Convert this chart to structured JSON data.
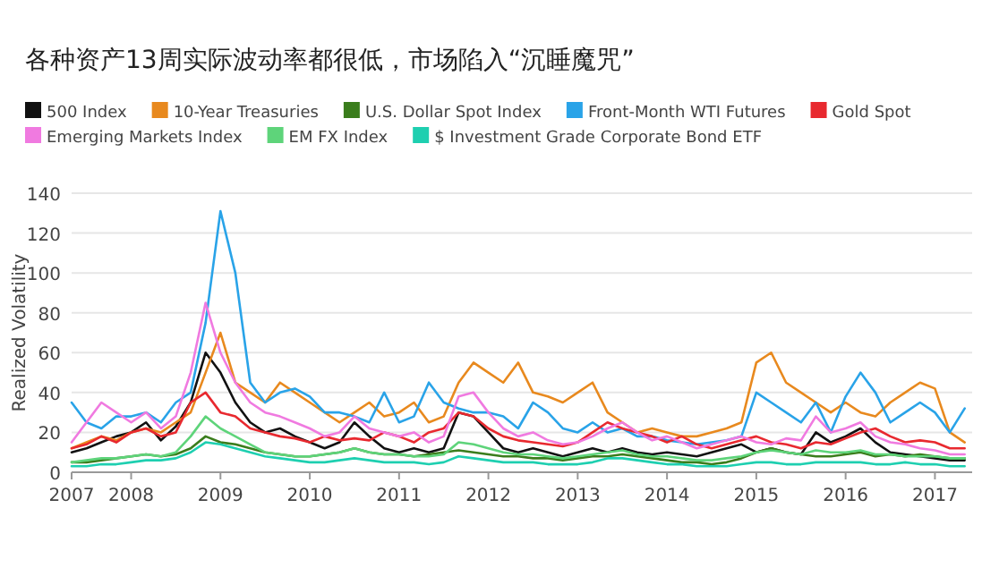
{
  "chart_data": {
    "type": "line",
    "title": "各种资产13周实际波动率都很低，市场陷入“沉睡魔咒”",
    "ylabel": "Realized Volatility",
    "x": [
      "2007-05",
      "2007-07",
      "2007-09",
      "2007-11",
      "2008-01",
      "2008-03",
      "2008-05",
      "2008-07",
      "2008-09",
      "2008-11",
      "2009-01",
      "2009-03",
      "2009-05",
      "2009-07",
      "2009-09",
      "2009-11",
      "2010-01",
      "2010-03",
      "2010-05",
      "2010-07",
      "2010-09",
      "2010-11",
      "2011-01",
      "2011-03",
      "2011-05",
      "2011-07",
      "2011-09",
      "2011-11",
      "2012-01",
      "2012-03",
      "2012-05",
      "2012-07",
      "2012-09",
      "2012-11",
      "2013-01",
      "2013-03",
      "2013-05",
      "2013-07",
      "2013-09",
      "2013-11",
      "2014-01",
      "2014-03",
      "2014-05",
      "2014-07",
      "2014-09",
      "2014-11",
      "2015-01",
      "2015-03",
      "2015-05",
      "2015-07",
      "2015-09",
      "2015-11",
      "2016-01",
      "2016-03",
      "2016-05",
      "2016-07",
      "2016-09",
      "2016-11",
      "2017-01",
      "2017-03",
      "2017-05"
    ],
    "series": [
      {
        "name": "500 Index",
        "color": "#111111",
        "values": [
          10,
          12,
          15,
          18,
          20,
          25,
          16,
          23,
          35,
          60,
          50,
          35,
          25,
          20,
          22,
          18,
          15,
          12,
          15,
          25,
          18,
          12,
          10,
          12,
          10,
          12,
          30,
          28,
          20,
          12,
          10,
          12,
          10,
          8,
          10,
          12,
          10,
          12,
          10,
          9,
          10,
          9,
          8,
          10,
          12,
          14,
          10,
          12,
          10,
          9,
          20,
          15,
          18,
          22,
          15,
          10,
          9,
          8,
          7,
          6,
          6
        ]
      },
      {
        "name": "10-Year Treasuries",
        "color": "#e8891e",
        "values": [
          12,
          15,
          18,
          16,
          20,
          22,
          20,
          25,
          30,
          50,
          70,
          45,
          40,
          35,
          45,
          40,
          35,
          30,
          25,
          30,
          35,
          28,
          30,
          35,
          25,
          28,
          45,
          55,
          50,
          45,
          55,
          40,
          38,
          35,
          40,
          45,
          30,
          25,
          20,
          22,
          20,
          18,
          18,
          20,
          22,
          25,
          55,
          60,
          45,
          40,
          35,
          30,
          35,
          30,
          28,
          35,
          40,
          45,
          42,
          20,
          15
        ]
      },
      {
        "name": "U.S. Dollar Spot Index",
        "color": "#3a7d1c",
        "values": [
          5,
          5,
          6,
          7,
          8,
          9,
          8,
          9,
          12,
          18,
          15,
          14,
          12,
          10,
          9,
          8,
          8,
          9,
          10,
          12,
          10,
          9,
          9,
          8,
          9,
          10,
          11,
          10,
          9,
          8,
          8,
          7,
          7,
          6,
          7,
          8,
          8,
          9,
          8,
          7,
          6,
          5,
          5,
          4,
          5,
          7,
          10,
          12,
          10,
          9,
          8,
          8,
          9,
          10,
          8,
          9,
          8,
          9,
          8,
          7,
          7
        ]
      },
      {
        "name": "Front-Month WTI Futures",
        "color": "#29a3e8",
        "values": [
          35,
          25,
          22,
          28,
          28,
          30,
          25,
          35,
          40,
          75,
          131,
          100,
          45,
          35,
          40,
          42,
          38,
          30,
          30,
          28,
          25,
          40,
          25,
          28,
          45,
          35,
          32,
          30,
          30,
          28,
          22,
          35,
          30,
          22,
          20,
          25,
          20,
          22,
          18,
          18,
          16,
          15,
          14,
          15,
          16,
          18,
          40,
          35,
          30,
          25,
          35,
          20,
          38,
          50,
          40,
          25,
          30,
          35,
          30,
          20,
          32
        ]
      },
      {
        "name": "Gold Spot",
        "color": "#e8292f",
        "values": [
          12,
          14,
          18,
          15,
          20,
          22,
          18,
          20,
          35,
          40,
          30,
          28,
          22,
          20,
          18,
          17,
          15,
          18,
          16,
          17,
          16,
          20,
          18,
          15,
          20,
          22,
          30,
          28,
          22,
          18,
          16,
          15,
          14,
          13,
          15,
          20,
          25,
          22,
          20,
          18,
          15,
          18,
          14,
          12,
          14,
          16,
          18,
          15,
          14,
          12,
          15,
          14,
          17,
          20,
          22,
          18,
          15,
          16,
          15,
          12,
          12
        ]
      },
      {
        "name": "Emerging Markets Index",
        "color": "#f07ae0",
        "values": [
          15,
          25,
          35,
          30,
          25,
          30,
          22,
          28,
          50,
          85,
          60,
          45,
          35,
          30,
          28,
          25,
          22,
          18,
          20,
          28,
          22,
          20,
          18,
          20,
          15,
          18,
          38,
          40,
          30,
          22,
          18,
          20,
          16,
          14,
          15,
          18,
          22,
          25,
          20,
          16,
          18,
          15,
          12,
          14,
          16,
          18,
          15,
          14,
          17,
          16,
          28,
          20,
          22,
          25,
          18,
          15,
          14,
          12,
          11,
          9,
          9
        ]
      },
      {
        "name": "EM FX Index",
        "color": "#5ed47a",
        "values": [
          5,
          6,
          7,
          7,
          8,
          9,
          8,
          10,
          18,
          28,
          22,
          18,
          14,
          10,
          9,
          8,
          8,
          9,
          10,
          12,
          10,
          9,
          9,
          8,
          8,
          9,
          15,
          14,
          12,
          10,
          9,
          9,
          8,
          7,
          8,
          9,
          10,
          11,
          9,
          8,
          8,
          7,
          6,
          6,
          7,
          8,
          10,
          11,
          10,
          9,
          11,
          10,
          10,
          11,
          9,
          9,
          8,
          8,
          8,
          7,
          7
        ]
      },
      {
        "name": "$ Investment Grade Corporate Bond ETF",
        "color": "#1ecfb0",
        "values": [
          3,
          3,
          4,
          4,
          5,
          6,
          6,
          7,
          10,
          15,
          14,
          12,
          10,
          8,
          7,
          6,
          5,
          5,
          6,
          7,
          6,
          5,
          5,
          5,
          4,
          5,
          8,
          7,
          6,
          5,
          5,
          5,
          4,
          4,
          4,
          5,
          7,
          7,
          6,
          5,
          4,
          4,
          3,
          3,
          3,
          4,
          5,
          5,
          4,
          4,
          5,
          5,
          5,
          5,
          4,
          4,
          5,
          4,
          4,
          3,
          3
        ]
      }
    ],
    "xlim": [
      "2007-05",
      "2017-06"
    ],
    "xticks": [
      {
        "value": "2007-05",
        "label": "2007"
      },
      {
        "value": "2008-01",
        "label": "2008"
      },
      {
        "value": "2009-01",
        "label": "2009"
      },
      {
        "value": "2010-01",
        "label": "2010"
      },
      {
        "value": "2011-01",
        "label": "2011"
      },
      {
        "value": "2012-01",
        "label": "2012"
      },
      {
        "value": "2013-01",
        "label": "2013"
      },
      {
        "value": "2014-01",
        "label": "2014"
      },
      {
        "value": "2015-01",
        "label": "2015"
      },
      {
        "value": "2016-01",
        "label": "2016"
      },
      {
        "value": "2017-01",
        "label": "2017"
      }
    ],
    "ylim": [
      0,
      140
    ],
    "yticks": [
      0,
      20,
      40,
      60,
      80,
      100,
      120,
      140
    ],
    "grid": "y",
    "legend": "top",
    "marker": "none",
    "line_style": "solid"
  }
}
